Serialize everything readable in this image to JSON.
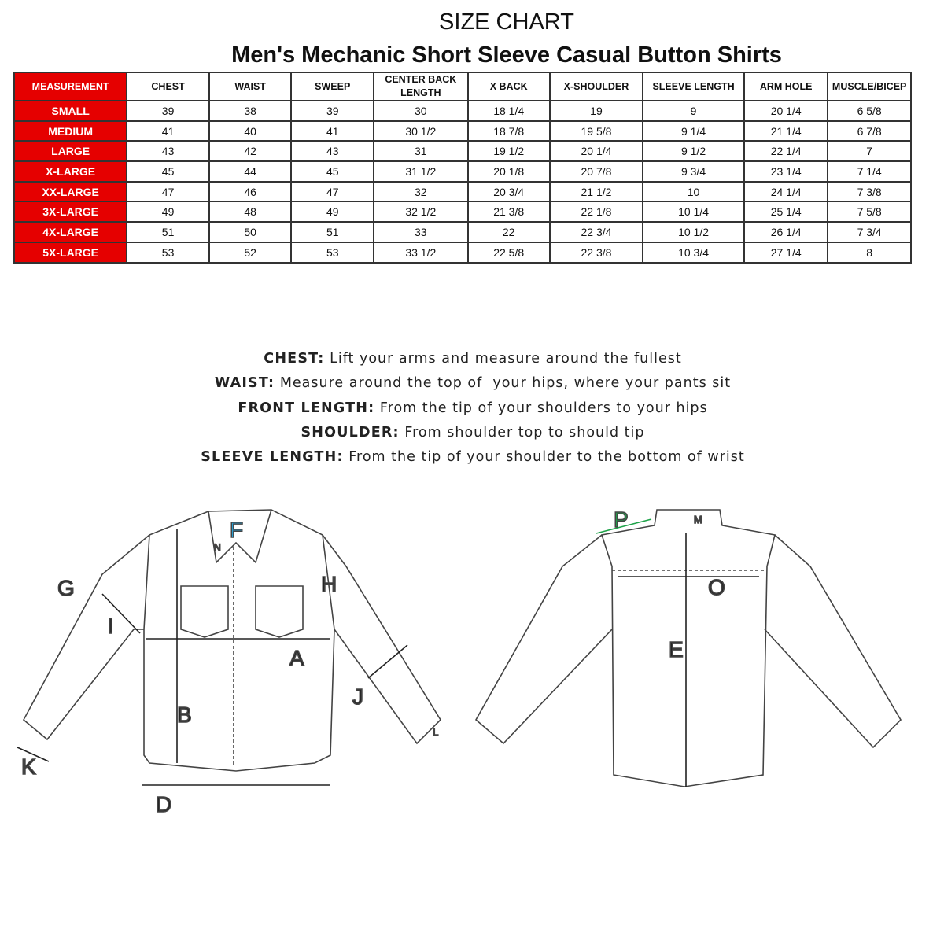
{
  "header": {
    "title": "SIZE CHART",
    "subtitle": "Men's Mechanic Short Sleeve Casual Button Shirts"
  },
  "table": {
    "columns": [
      "MEASUREMENT",
      "CHEST",
      "WAIST",
      "SWEEP",
      "CENTER BACK LENGTH",
      "X BACK",
      "X-SHOULDER",
      "SLEEVE LENGTH",
      "ARM HOLE",
      "MUSCLE/BICEP"
    ],
    "rows": [
      [
        "SMALL",
        "39",
        "38",
        "39",
        "30",
        "18 1/4",
        "19",
        "9",
        "20 1/4",
        "6 5/8"
      ],
      [
        "MEDIUM",
        "41",
        "40",
        "41",
        "30 1/2",
        "18 7/8",
        "19 5/8",
        "9 1/4",
        "21 1/4",
        "6 7/8"
      ],
      [
        "LARGE",
        "43",
        "42",
        "43",
        "31",
        "19 1/2",
        "20 1/4",
        "9 1/2",
        "22 1/4",
        "7"
      ],
      [
        "X-LARGE",
        "45",
        "44",
        "45",
        "31 1/2",
        "20 1/8",
        "20 7/8",
        "9 3/4",
        "23 1/4",
        "7 1/4"
      ],
      [
        "XX-LARGE",
        "47",
        "46",
        "47",
        "32",
        "20 3/4",
        "21 1/2",
        "10",
        "24 1/4",
        "7 3/8"
      ],
      [
        "3X-LARGE",
        "49",
        "48",
        "49",
        "32 1/2",
        "21 3/8",
        "22 1/8",
        "10 1/4",
        "25 1/4",
        "7 5/8"
      ],
      [
        "4X-LARGE",
        "51",
        "50",
        "51",
        "33",
        "22",
        "22 3/4",
        "10 1/2",
        "26 1/4",
        "7 3/4"
      ],
      [
        "5X-LARGE",
        "53",
        "52",
        "53",
        "33 1/2",
        "22 5/8",
        "22 3/8",
        "10 3/4",
        "27 1/4",
        "8"
      ]
    ],
    "header_color": "#e50000"
  },
  "instructions": [
    {
      "term": "CHEST:",
      "text": " Lift your arms and measure around the fullest"
    },
    {
      "term": "WAIST:",
      "text": " Measure around the top of  your hips, where your pants sit"
    },
    {
      "term": "FRONT LENGTH:",
      "text": " From the tip of your shoulders to your hips"
    },
    {
      "term": "SHOULDER:",
      "text": " From shoulder top to should tip"
    },
    {
      "term": "SLEEVE LENGTH:",
      "text": " From the tip of your shoulder to the bottom of wrist"
    }
  ],
  "diagram": {
    "front_labels": {
      "A": "A",
      "B": "B",
      "D": "D",
      "F": "F",
      "G": "G",
      "H": "H",
      "I": "I",
      "J": "J",
      "K": "K",
      "L": "L",
      "N": "N"
    },
    "back_labels": {
      "E": "E",
      "M": "M",
      "O": "O",
      "P": "P"
    },
    "colors": {
      "F": "#29a8e0",
      "N": "#e0202a",
      "P": "#1fa34a"
    }
  }
}
